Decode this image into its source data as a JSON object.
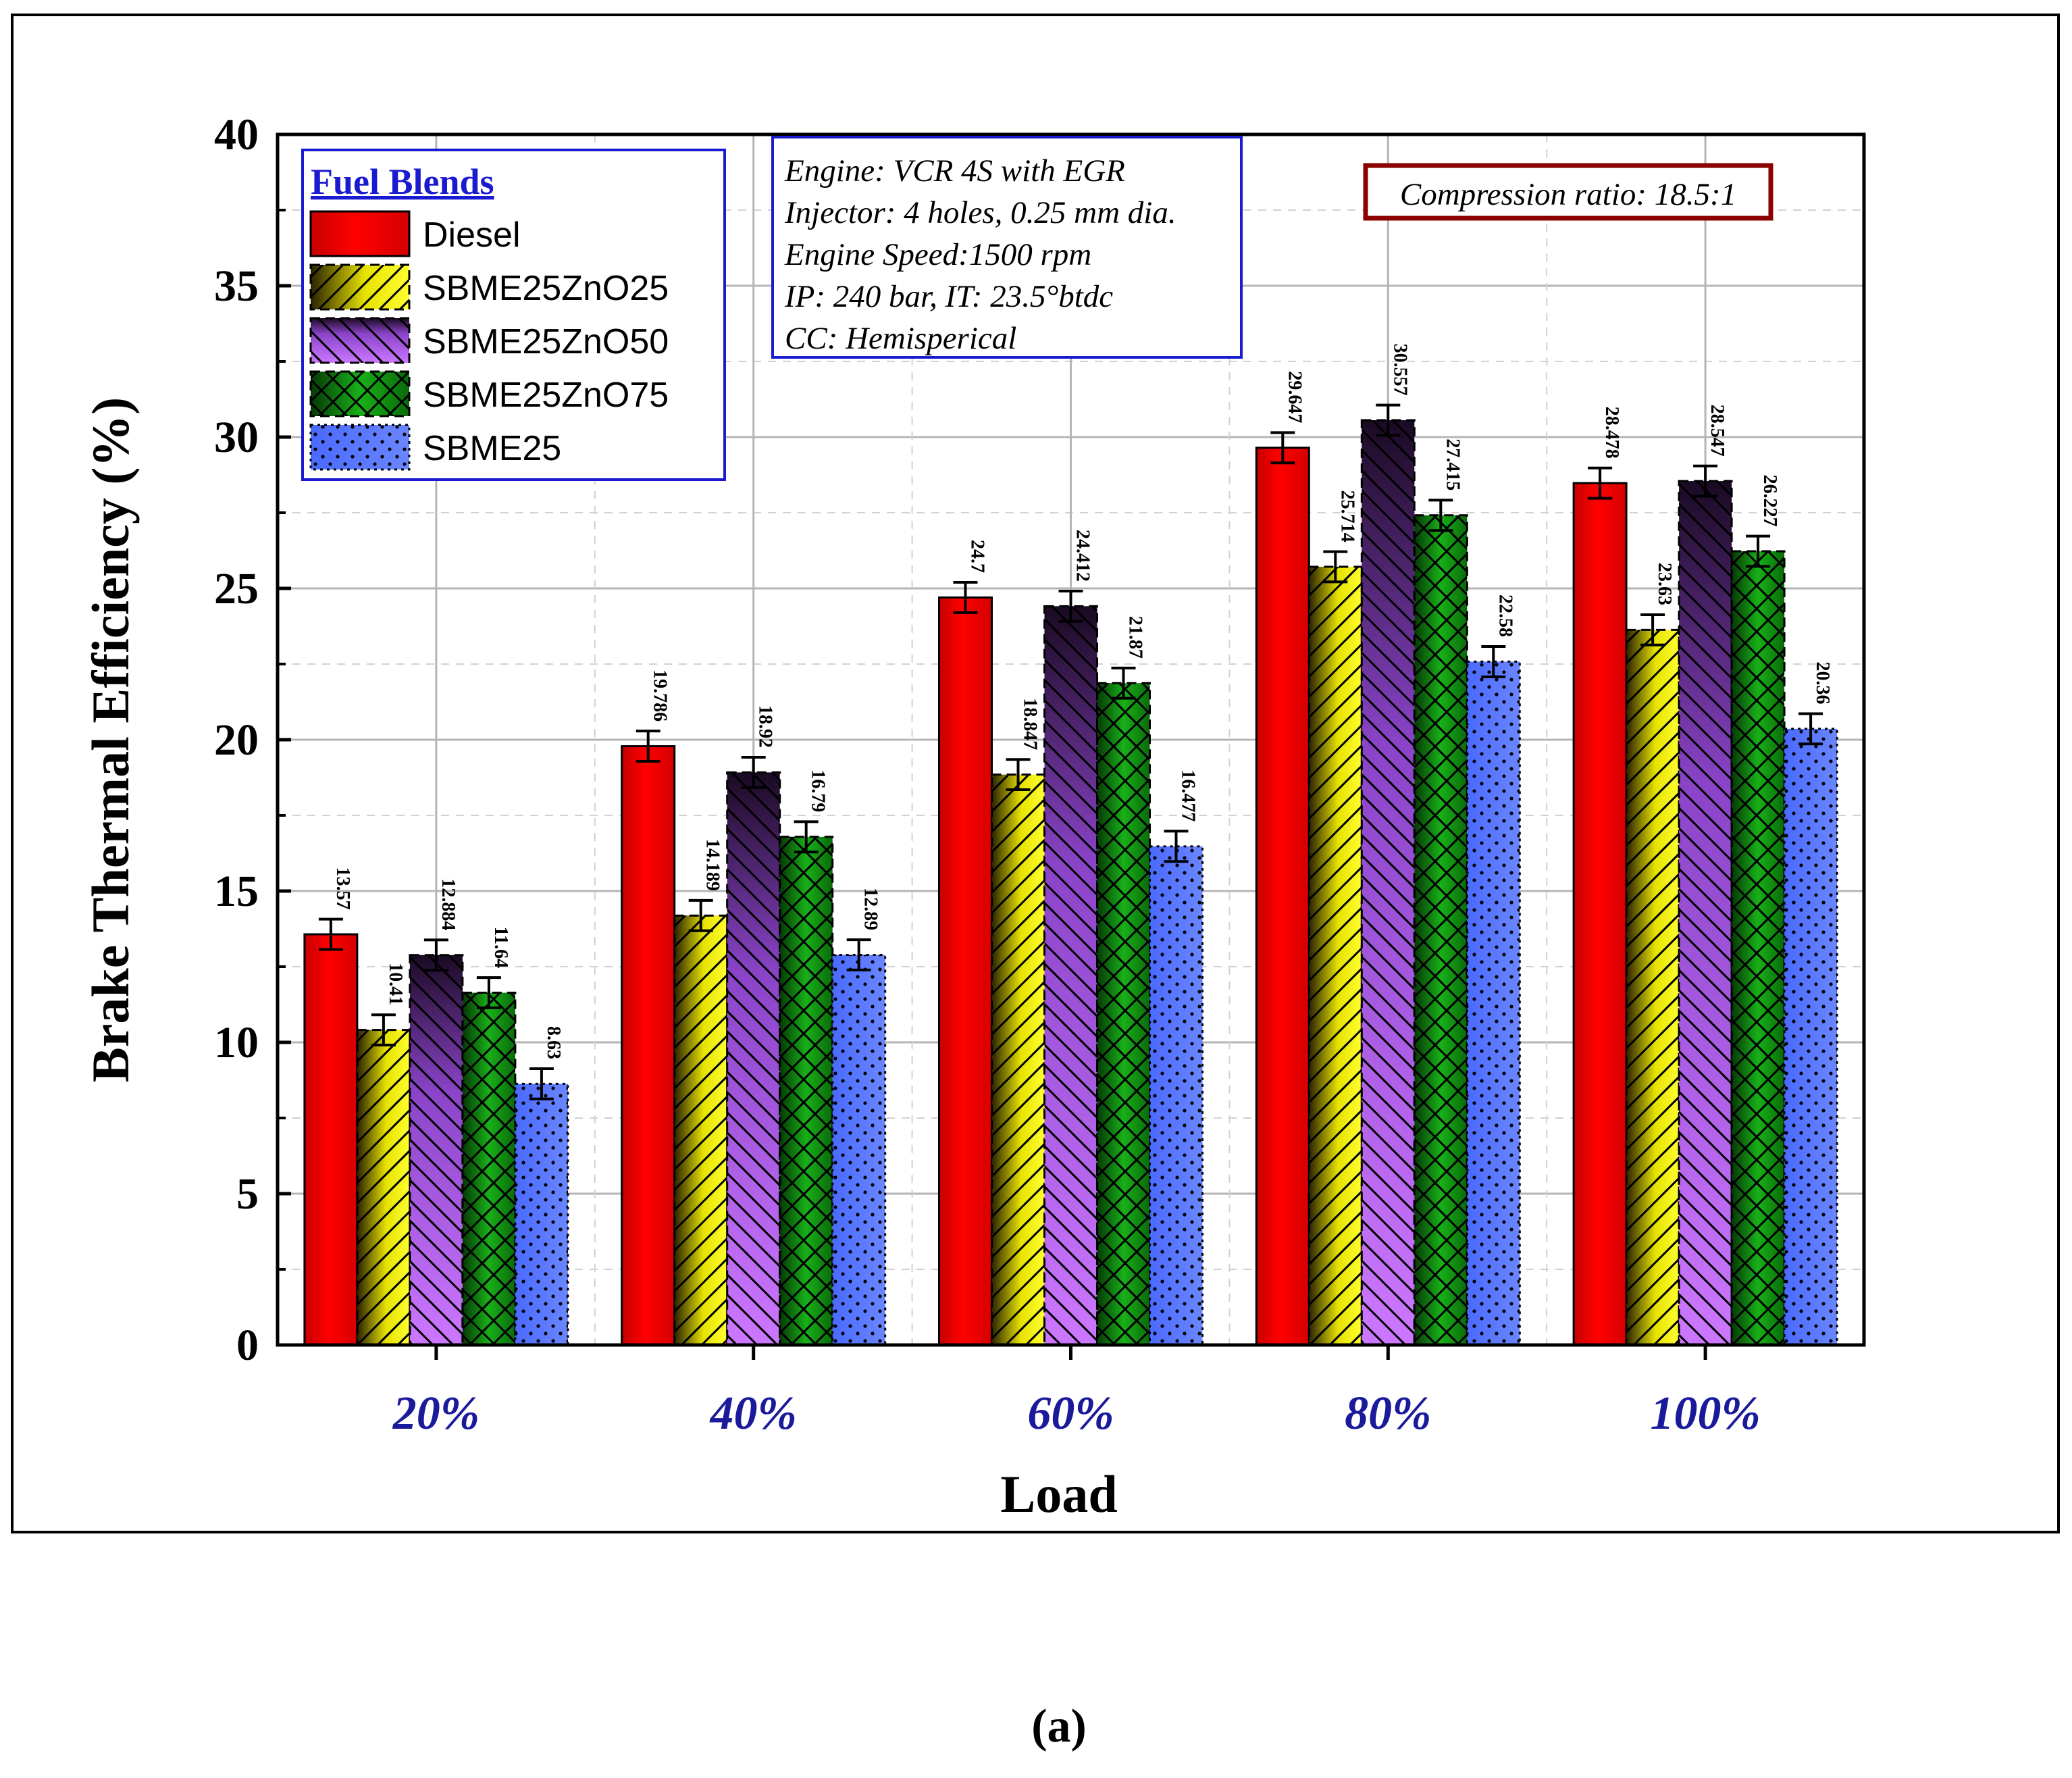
{
  "chart_data": {
    "type": "bar",
    "xlabel": "Load",
    "ylabel": "Brake Thermal Efficiency (%)",
    "ylim": [
      0,
      40
    ],
    "yticks": [
      "0",
      "5",
      "10",
      "15",
      "20",
      "25",
      "30",
      "35",
      "40"
    ],
    "categories": [
      "20%",
      "40%",
      "60%",
      "80%",
      "100%"
    ],
    "error_bar": 0.5,
    "legend_title": "Fuel Blends",
    "series": [
      {
        "name": "Diesel",
        "values": [
          13.57,
          19.786,
          24.7,
          29.647,
          28.478
        ],
        "labels": [
          "13.57",
          "19.786",
          "24.7",
          "29.647",
          "28.478"
        ]
      },
      {
        "name": "SBME25ZnO25",
        "values": [
          10.41,
          14.189,
          18.847,
          25.714,
          23.63
        ],
        "labels": [
          "10.41",
          "14.189",
          "18.847",
          "25.714",
          "23.63"
        ]
      },
      {
        "name": "SBME25ZnO50",
        "values": [
          12.884,
          18.92,
          24.412,
          30.557,
          28.547
        ],
        "labels": [
          "12.884",
          "18.92",
          "24.412",
          "30.557",
          "28.547"
        ]
      },
      {
        "name": "SBME25ZnO75",
        "values": [
          11.64,
          16.79,
          21.87,
          27.415,
          26.227
        ],
        "labels": [
          "11.64",
          "16.79",
          "21.87",
          "27.415",
          "26.227"
        ]
      },
      {
        "name": "SBME25",
        "values": [
          8.63,
          12.89,
          16.477,
          22.58,
          20.36
        ],
        "labels": [
          "8.63",
          "12.89",
          "16.477",
          "22.58",
          "20.36"
        ]
      }
    ],
    "info_box": [
      "Engine: VCR 4S with EGR",
      "Injector: 4 holes, 0.25 mm dia.",
      "Engine Speed:1500 rpm",
      "IP: 240 bar, IT: 23.5°btdc",
      "CC: Hemisperical"
    ],
    "compression_note": "Compression ratio: 18.5:1",
    "caption": "(a)"
  },
  "colors": {
    "diesel": "#e60000",
    "zno25": "#ffff00",
    "zno50": "#c36cff",
    "zno75": "#0e9a0e",
    "sbme25": "#5a78ff",
    "legend_border": "#1a1ad0",
    "note_border": "#8b0000",
    "category_text": "#1a1a9a"
  }
}
